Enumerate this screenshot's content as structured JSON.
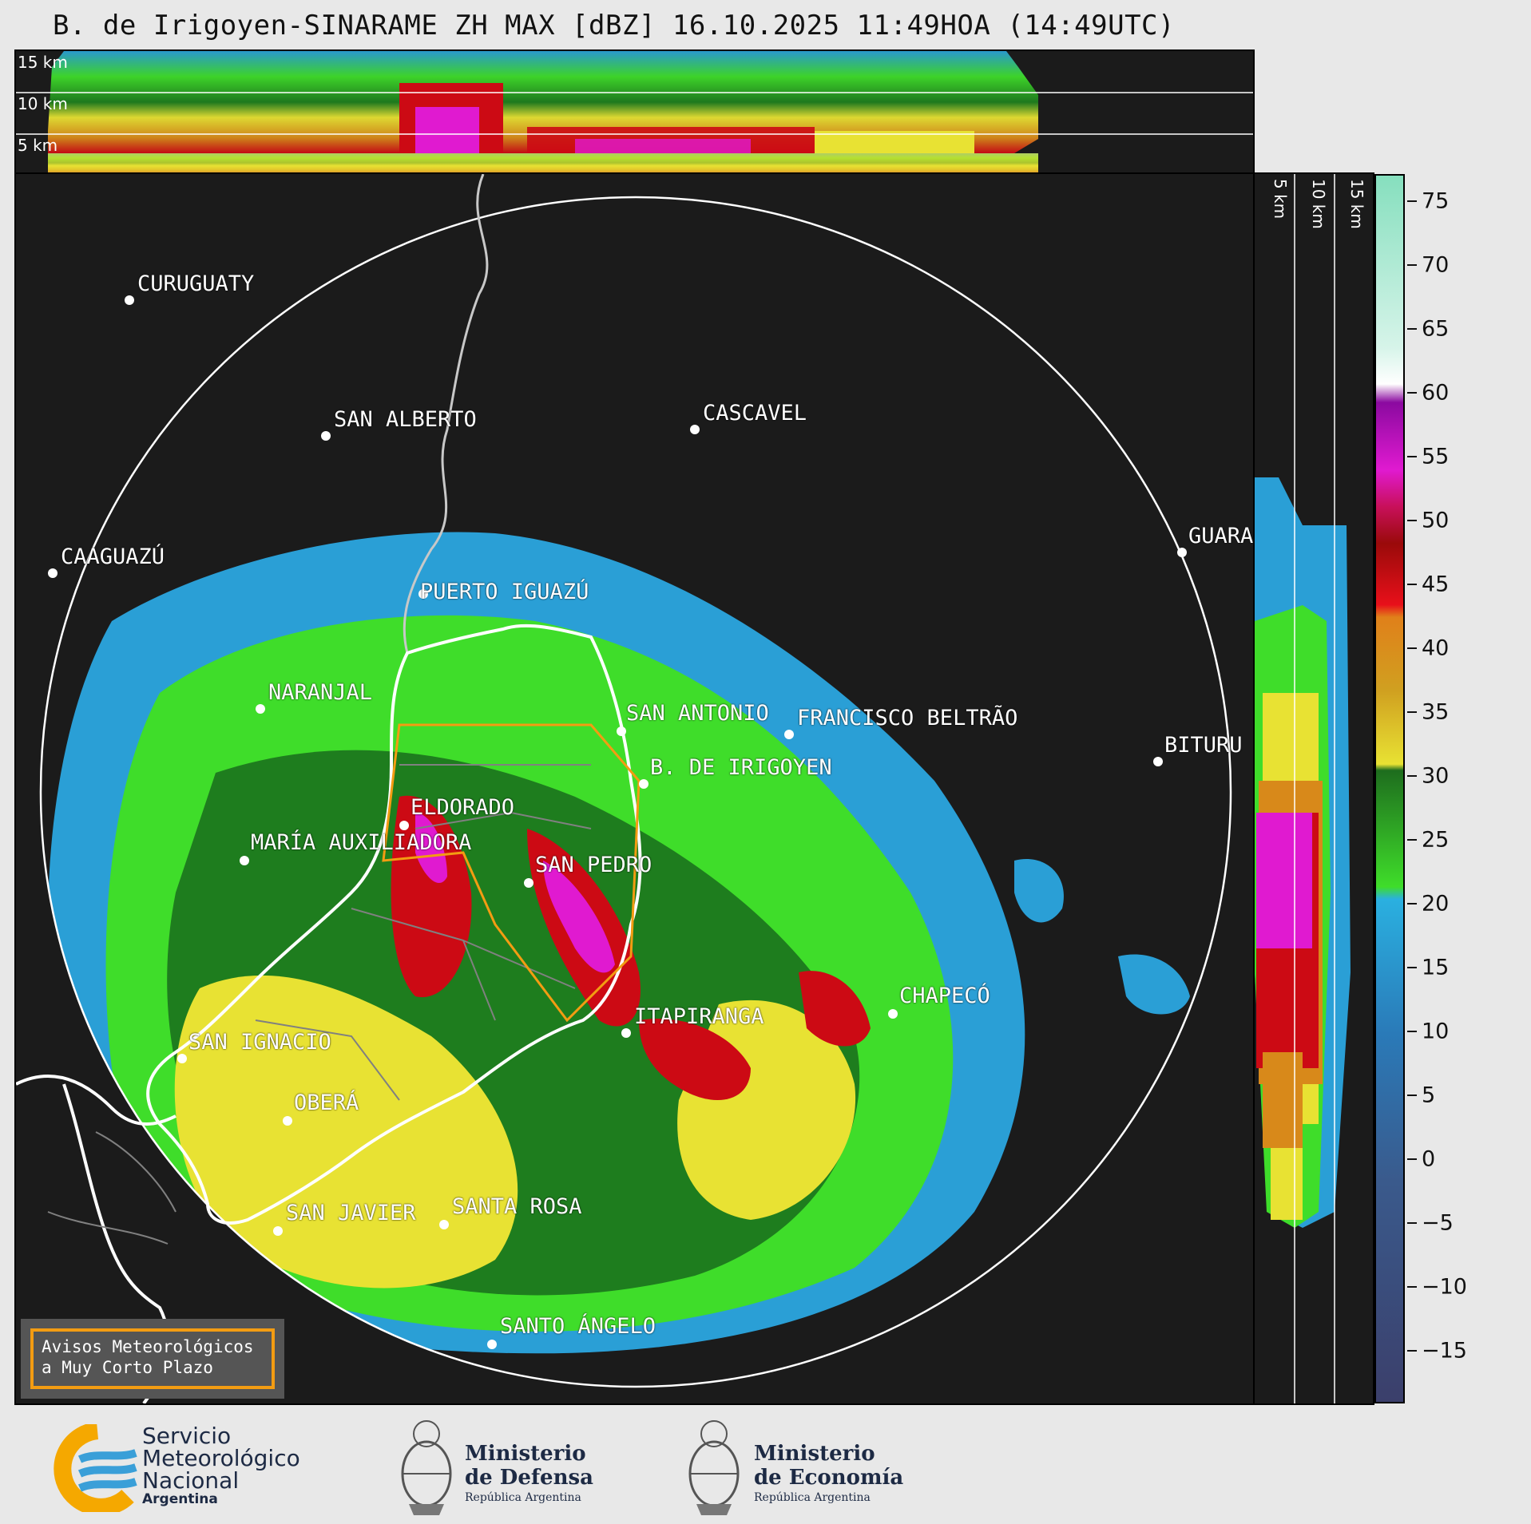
{
  "title": "B. de Irigoyen-SINARAME ZH MAX [dBZ] 16.10.2025 11:49HOA (14:49UTC)",
  "top_panel": {
    "altitudes": [
      "15 km",
      "10 km",
      "5 km"
    ]
  },
  "side_panel": {
    "altitudes": [
      "5 km",
      "10 km",
      "15 km"
    ]
  },
  "colorbar": {
    "unit": "dBZ",
    "min": -19,
    "max": 77,
    "ticks": [
      "75",
      "70",
      "65",
      "60",
      "55",
      "50",
      "45",
      "40",
      "35",
      "30",
      "25",
      "20",
      "15",
      "10",
      "5",
      "0",
      "−5",
      "−10",
      "−15"
    ],
    "tick_values": [
      75,
      70,
      65,
      60,
      55,
      50,
      45,
      40,
      35,
      30,
      25,
      20,
      15,
      10,
      5,
      0,
      -5,
      -10,
      -15
    ],
    "colors": {
      "very_low": "#3b3f6b",
      "low": "#3a6aa0",
      "blue": "#2a9fd6",
      "green": "#1e7d1e",
      "light_green": "#3fdd2a",
      "yellow": "#e8e233",
      "orange": "#d8891a",
      "red": "#cc0a14",
      "magenta": "#e01ad0",
      "purple": "#8b0aa0",
      "white": "#ffffff",
      "mint": "#86dfbe"
    }
  },
  "cities": [
    {
      "name": "CURUGUATY"
    },
    {
      "name": "SAN ALBERTO"
    },
    {
      "name": "CASCAVEL"
    },
    {
      "name": "CAAGUAZÚ"
    },
    {
      "name": "GUARA"
    },
    {
      "name": "PUERTO IGUAZÚ"
    },
    {
      "name": "NARANJAL"
    },
    {
      "name": "SAN ANTONIO"
    },
    {
      "name": "FRANCISCO BELTRÃO"
    },
    {
      "name": "BITURU"
    },
    {
      "name": "B. DE IRIGOYEN"
    },
    {
      "name": "ELDORADO"
    },
    {
      "name": "MARÍA AUXILIADORA"
    },
    {
      "name": "SAN PEDRO"
    },
    {
      "name": "CHAPECÓ"
    },
    {
      "name": "ITAPIRANGA"
    },
    {
      "name": "SAN IGNACIO"
    },
    {
      "name": "OBERÁ"
    },
    {
      "name": "SAN JAVIER"
    },
    {
      "name": "SANTA ROSA"
    },
    {
      "name": "SANTO ÁNGELO"
    }
  ],
  "warning": {
    "line1": "Avisos Meteorológicos",
    "line2": "a Muy Corto Plazo"
  },
  "logos": {
    "smn": {
      "line1": "Servicio",
      "line2": "Meteorológico",
      "line3": "Nacional",
      "line4": "Argentina"
    },
    "defensa": {
      "line1": "Ministerio",
      "line2": "de Defensa",
      "line3": "República Argentina"
    },
    "economia": {
      "line1": "Ministerio",
      "line2": "de Economía",
      "line3": "República Argentina"
    }
  }
}
